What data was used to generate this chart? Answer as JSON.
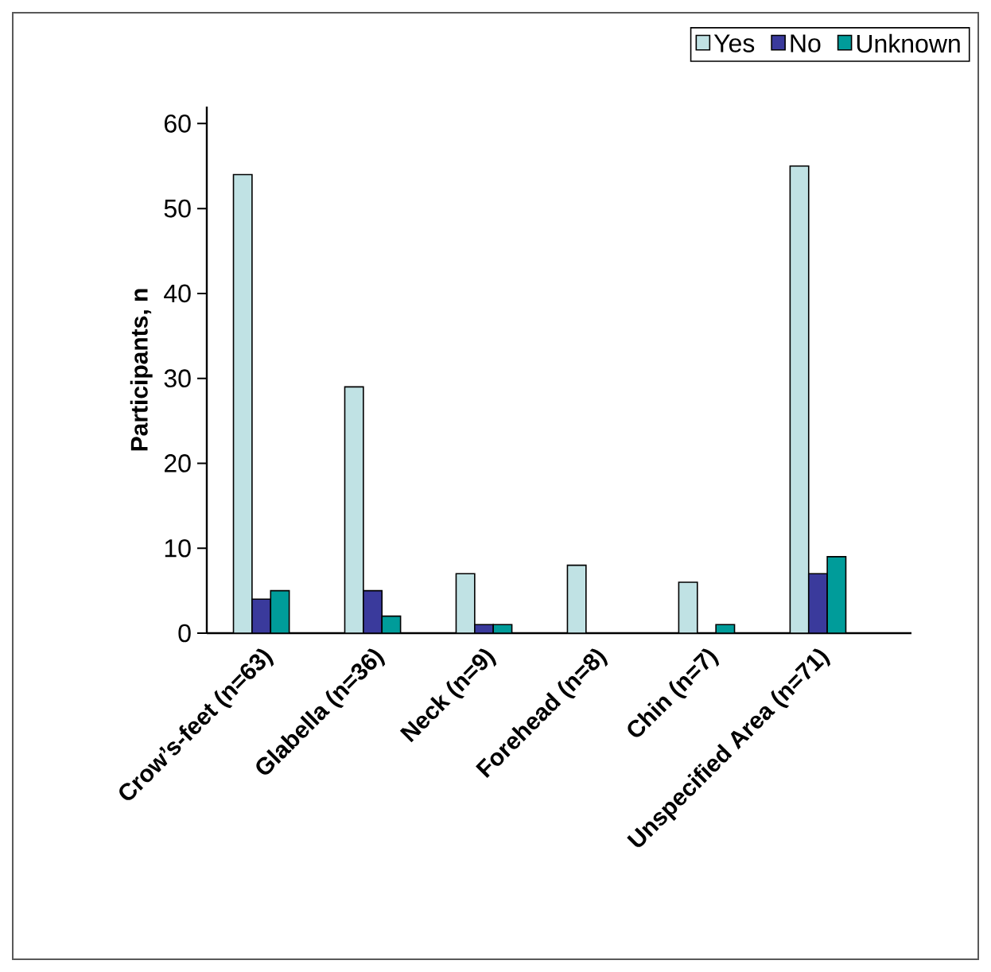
{
  "chart_data": {
    "type": "bar",
    "ylabel": "Participants, n",
    "categories": [
      "Crow’s-feet (n=63)",
      "Glabella (n=36)",
      "Neck (n=9)",
      "Forehead (n=8)",
      "Chin (n=7)",
      "Unspecified Area (n=71)"
    ],
    "series": [
      {
        "name": "Yes",
        "color": "#c0e2e4",
        "values": [
          54,
          29,
          7,
          8,
          6,
          55
        ]
      },
      {
        "name": "No",
        "color": "#3a3a9c",
        "values": [
          4,
          5,
          1,
          0,
          0,
          7
        ]
      },
      {
        "name": "Unknown",
        "color": "#009c9a",
        "values": [
          5,
          2,
          1,
          0,
          1,
          9
        ]
      }
    ],
    "ylim": [
      0,
      62
    ],
    "yticks": [
      0,
      10,
      20,
      30,
      40,
      50,
      60
    ],
    "grid": false,
    "legend": "top right"
  }
}
